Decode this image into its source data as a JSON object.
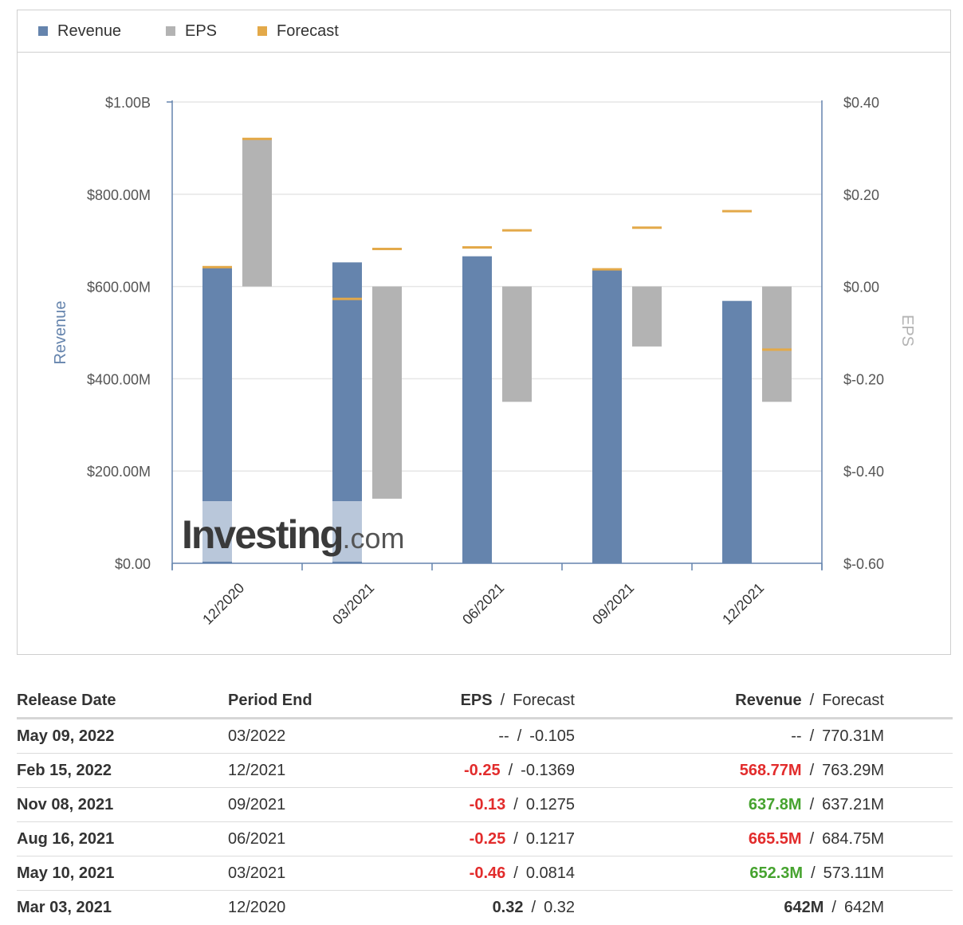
{
  "legend": [
    {
      "label": "Revenue",
      "color": "#6584ad"
    },
    {
      "label": "EPS",
      "color": "#b3b3b3"
    },
    {
      "label": "Forecast",
      "color": "#e3a949"
    }
  ],
  "chart_data": {
    "type": "bar",
    "categories": [
      "12/2020",
      "03/2021",
      "06/2021",
      "09/2021",
      "12/2021"
    ],
    "series": [
      {
        "name": "Revenue",
        "axis": "left",
        "values": [
          642,
          652.3,
          665.5,
          637.8,
          568.77
        ],
        "unit": "M"
      },
      {
        "name": "EPS",
        "axis": "right",
        "values": [
          0.32,
          -0.46,
          -0.25,
          -0.13,
          -0.25
        ]
      },
      {
        "name": "Forecast",
        "kind": "revenue",
        "axis": "left",
        "values": [
          642,
          573.11,
          684.75,
          637.21,
          763.29
        ]
      },
      {
        "name": "Forecast",
        "kind": "eps",
        "axis": "right",
        "values": [
          0.32,
          0.0814,
          0.1217,
          0.1275,
          -0.1369
        ]
      }
    ],
    "left_axis": {
      "label": "Revenue",
      "ticks": [
        "$0.00",
        "$200.00M",
        "$400.00M",
        "$600.00M",
        "$800.00M",
        "$1.00B"
      ],
      "range": [
        0,
        1000
      ]
    },
    "right_axis": {
      "label": "EPS",
      "ticks": [
        "$-0.60",
        "$-0.40",
        "$-0.20",
        "$0.00",
        "$0.20",
        "$0.40"
      ],
      "range": [
        -0.6,
        0.4
      ]
    },
    "colors": {
      "revenue": "#6584ad",
      "eps": "#b3b3b3",
      "forecast": "#e3a949"
    },
    "grid": true,
    "legend_position": "top-left",
    "watermark": "Investing.com"
  },
  "table": {
    "headers": {
      "release": "Release Date",
      "period": "Period End",
      "eps": "EPS",
      "eps_forecast": "Forecast",
      "revenue": "Revenue",
      "revenue_forecast": "Forecast",
      "sep": "/"
    },
    "rows": [
      {
        "release": "May 09, 2022",
        "period": "03/2022",
        "eps": "--",
        "eps_class": "placeholder",
        "eps_forecast": "-0.105",
        "revenue": "--",
        "revenue_class": "placeholder",
        "revenue_forecast": "770.31M"
      },
      {
        "release": "Feb 15, 2022",
        "period": "12/2021",
        "eps": "-0.25",
        "eps_class": "neg",
        "eps_forecast": "-0.1369",
        "revenue": "568.77M",
        "revenue_class": "neg",
        "revenue_forecast": "763.29M"
      },
      {
        "release": "Nov 08, 2021",
        "period": "09/2021",
        "eps": "-0.13",
        "eps_class": "neg",
        "eps_forecast": "0.1275",
        "revenue": "637.8M",
        "revenue_class": "pos",
        "revenue_forecast": "637.21M"
      },
      {
        "release": "Aug 16, 2021",
        "period": "06/2021",
        "eps": "-0.25",
        "eps_class": "neg",
        "eps_forecast": "0.1217",
        "revenue": "665.5M",
        "revenue_class": "neg",
        "revenue_forecast": "684.75M"
      },
      {
        "release": "May 10, 2021",
        "period": "03/2021",
        "eps": "-0.46",
        "eps_class": "neg",
        "eps_forecast": "0.0814",
        "revenue": "652.3M",
        "revenue_class": "pos",
        "revenue_forecast": "573.11M"
      },
      {
        "release": "Mar 03, 2021",
        "period": "12/2020",
        "eps": "0.32",
        "eps_class": "neutral",
        "eps_forecast": "0.32",
        "revenue": "642M",
        "revenue_class": "neutral",
        "revenue_forecast": "642M"
      }
    ]
  }
}
